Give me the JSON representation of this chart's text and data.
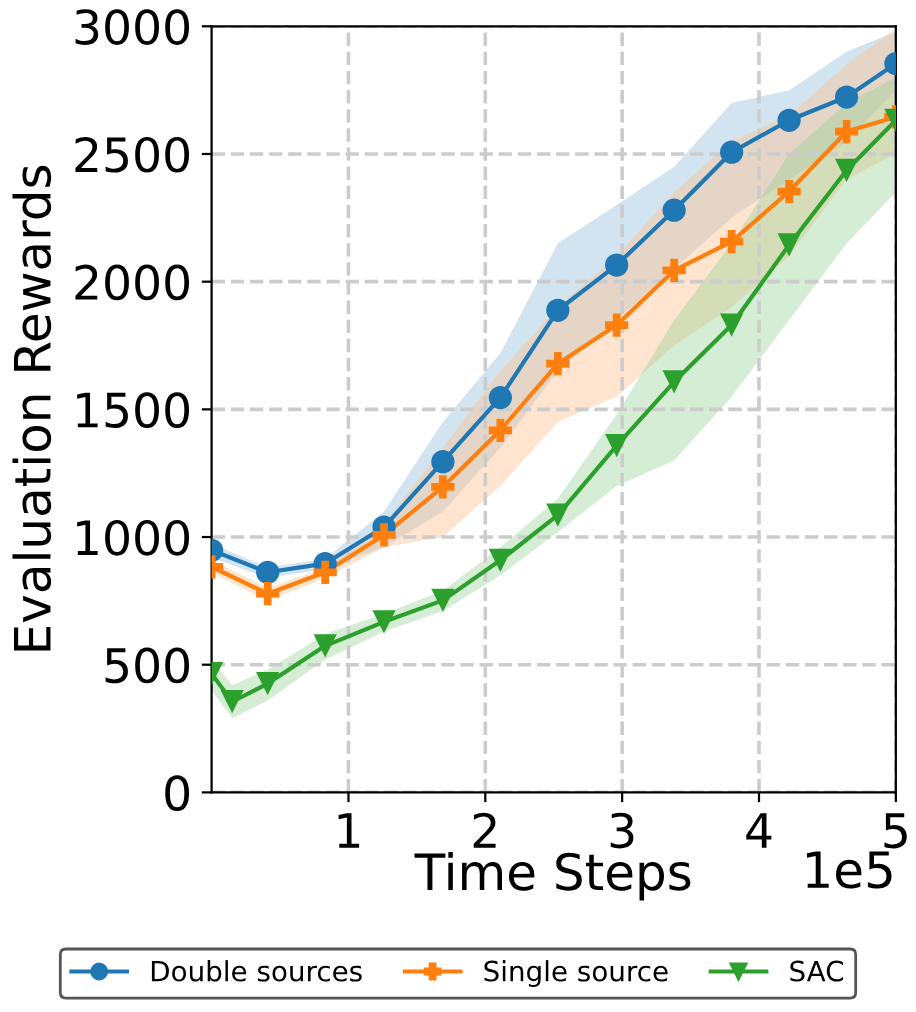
{
  "chart_data": {
    "type": "line",
    "xlabel": "Time Steps",
    "ylabel": "Evaluation Rewards",
    "xlim": [
      0,
      5
    ],
    "ylim": [
      0,
      3000
    ],
    "xticks": [
      1,
      2,
      3,
      4,
      5
    ],
    "yticks": [
      0,
      500,
      1000,
      1500,
      2000,
      2500,
      3000
    ],
    "annotations": [
      "1e5"
    ],
    "grid": true,
    "legend": "bottom",
    "series": [
      {
        "name": "Double sources",
        "color": "#1f77b4",
        "marker": "circle",
        "x": [
          0,
          0.41,
          0.83,
          1.26,
          1.69,
          2.11,
          2.53,
          2.96,
          3.38,
          3.8,
          4.22,
          4.64,
          5
        ],
        "values": [
          948,
          862,
          896,
          1039,
          1295,
          1546,
          1888,
          2065,
          2280,
          2507,
          2632,
          2723,
          2854
        ],
        "lower": [
          920,
          840,
          875,
          960,
          1100,
          1350,
          1650,
          1850,
          2050,
          2250,
          2400,
          2550,
          2750
        ],
        "upper": [
          975,
          880,
          915,
          1100,
          1450,
          1720,
          2150,
          2300,
          2450,
          2700,
          2750,
          2900,
          2980
        ]
      },
      {
        "name": "Single source",
        "color": "#ff7f0e",
        "marker": "cross",
        "x": [
          0,
          0.41,
          0.83,
          1.26,
          1.69,
          2.11,
          2.53,
          2.96,
          3.38,
          3.8,
          4.22,
          4.64,
          5
        ],
        "values": [
          883,
          778,
          862,
          1008,
          1196,
          1418,
          1679,
          1830,
          2044,
          2157,
          2353,
          2588,
          2645
        ],
        "lower": [
          860,
          750,
          840,
          960,
          1000,
          1200,
          1450,
          1550,
          1750,
          1900,
          2100,
          2400,
          2500
        ],
        "upper": [
          910,
          800,
          880,
          1050,
          1350,
          1650,
          1900,
          2100,
          2350,
          2550,
          2650,
          2850,
          2990
        ]
      },
      {
        "name": "SAC",
        "color": "#2ca02c",
        "marker": "triangle",
        "x": [
          0,
          0.15,
          0.41,
          0.83,
          1.26,
          1.69,
          2.11,
          2.53,
          2.96,
          3.38,
          3.8,
          4.22,
          4.64,
          5
        ],
        "values": [
          465,
          355,
          426,
          574,
          668,
          752,
          909,
          1086,
          1358,
          1608,
          1830,
          2144,
          2436,
          2632
        ],
        "lower": [
          400,
          290,
          360,
          520,
          630,
          710,
          850,
          1020,
          1200,
          1300,
          1550,
          1850,
          2150,
          2350
        ],
        "upper": [
          520,
          420,
          480,
          620,
          700,
          790,
          960,
          1150,
          1480,
          1850,
          2150,
          2500,
          2700,
          2800
        ]
      }
    ]
  }
}
